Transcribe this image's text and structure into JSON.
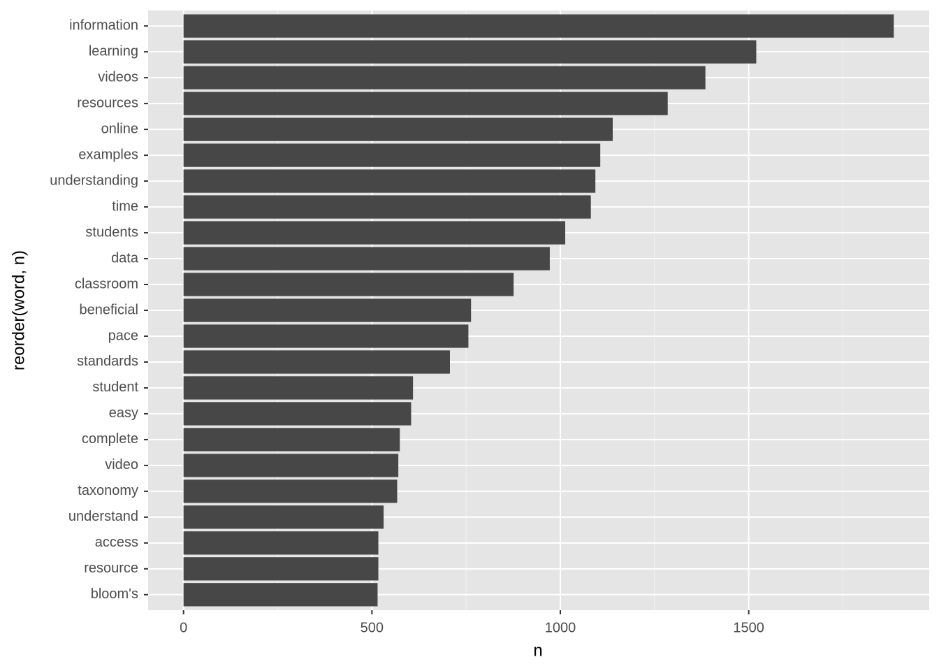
{
  "chart_data": {
    "type": "bar",
    "orientation": "horizontal",
    "x_label": "n",
    "y_label": "reorder(word, n)",
    "categories": [
      "information",
      "learning",
      "videos",
      "resources",
      "online",
      "examples",
      "understanding",
      "time",
      "students",
      "data",
      "classroom",
      "beneficial",
      "pace",
      "standards",
      "student",
      "easy",
      "complete",
      "video",
      "taxonomy",
      "understand",
      "access",
      "resource",
      "bloom's"
    ],
    "values": [
      1885,
      1520,
      1385,
      1285,
      1139,
      1106,
      1093,
      1081,
      1013,
      972,
      876,
      763,
      756,
      707,
      609,
      604,
      574,
      570,
      567,
      531,
      517,
      517,
      515
    ],
    "color": "#474747",
    "xlim": [
      -94,
      1979
    ],
    "xticks": [
      0,
      500,
      1000,
      1500
    ],
    "grid": true
  }
}
